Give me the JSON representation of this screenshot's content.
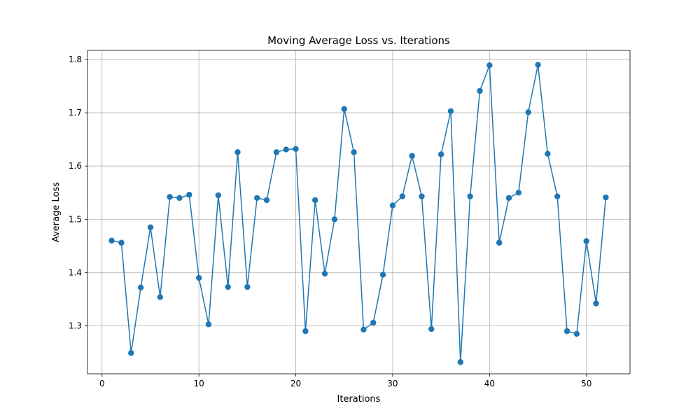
{
  "chart_data": {
    "type": "line",
    "title": "Moving Average Loss vs. Iterations",
    "xlabel": "Iterations",
    "ylabel": "Average Loss",
    "xlim": [
      -1.5,
      54.5
    ],
    "ylim": [
      1.21,
      1.817
    ],
    "xticks": [
      0,
      10,
      20,
      30,
      40,
      50
    ],
    "yticks": [
      1.3,
      1.4,
      1.5,
      1.6,
      1.7,
      1.8
    ],
    "xtick_labels": [
      "0",
      "10",
      "20",
      "30",
      "40",
      "50"
    ],
    "ytick_labels": [
      "1.3",
      "1.4",
      "1.5",
      "1.6",
      "1.7",
      "1.8"
    ],
    "grid": true,
    "marker": "circle",
    "color": "#1f77b4",
    "series": [
      {
        "x": [
          1,
          2,
          3,
          4,
          5,
          6,
          7,
          8,
          9,
          10,
          11,
          12,
          13,
          14,
          15,
          16,
          17,
          18,
          19,
          20,
          21,
          22,
          23,
          24,
          25,
          26,
          27,
          28,
          29,
          30,
          31,
          32,
          33,
          34,
          35,
          36,
          37,
          38,
          39,
          40,
          41,
          42,
          43,
          44,
          45,
          46,
          47,
          48,
          49,
          50,
          51,
          52
        ],
        "y": [
          1.46,
          1.456,
          1.249,
          1.372,
          1.485,
          1.354,
          1.542,
          1.54,
          1.546,
          1.39,
          1.303,
          1.545,
          1.373,
          1.626,
          1.373,
          1.54,
          1.536,
          1.626,
          1.631,
          1.632,
          1.29,
          1.536,
          1.398,
          1.5,
          1.707,
          1.626,
          1.293,
          1.306,
          1.396,
          1.526,
          1.543,
          1.619,
          1.543,
          1.294,
          1.622,
          1.703,
          1.232,
          1.543,
          1.741,
          1.789,
          1.456,
          1.54,
          1.55,
          1.701,
          1.79,
          1.623,
          1.543,
          1.29,
          1.285,
          1.459,
          1.342,
          1.541
        ]
      }
    ]
  }
}
